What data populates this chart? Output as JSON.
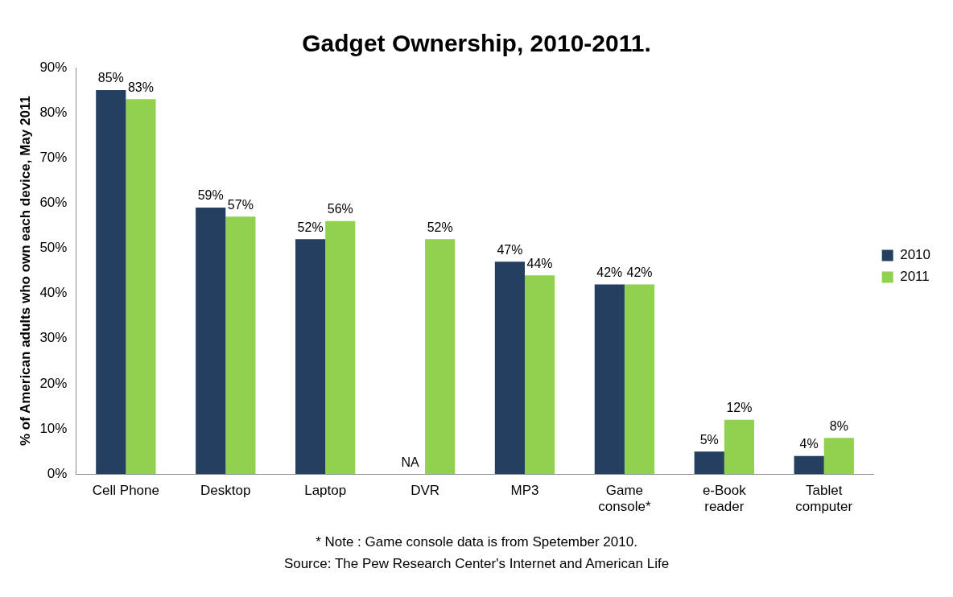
{
  "chart_data": {
    "type": "bar",
    "title": "Gadget Ownership, 2010-2011.",
    "ylabel": "% of American adults who own each device, May 2011",
    "categories": [
      "Cell Phone",
      "Desktop",
      "Laptop",
      "DVR",
      "MP3",
      "Game\nconsole*",
      "e-Book\nreader",
      "Tablet\ncomputer"
    ],
    "series": [
      {
        "name": "2010",
        "color": "#243f60",
        "values": [
          85,
          59,
          52,
          null,
          47,
          42,
          5,
          4
        ],
        "value_labels": [
          "85%",
          "59%",
          "52%",
          "NA",
          "47%",
          "42%",
          "5%",
          "4%"
        ]
      },
      {
        "name": "2011",
        "color": "#92d050",
        "values": [
          83,
          57,
          56,
          52,
          44,
          42,
          12,
          8
        ],
        "value_labels": [
          "83%",
          "57%",
          "56%",
          "52%",
          "44%",
          "42%",
          "12%",
          "8%"
        ]
      }
    ],
    "ylim": [
      0,
      90
    ],
    "yticks": [
      {
        "value": 0,
        "label": "0%"
      },
      {
        "value": 10,
        "label": "10%"
      },
      {
        "value": 20,
        "label": "20%"
      },
      {
        "value": 30,
        "label": "30%"
      },
      {
        "value": 40,
        "label": "40%"
      },
      {
        "value": 50,
        "label": "50%"
      },
      {
        "value": 60,
        "label": "60%"
      },
      {
        "value": 70,
        "label": "70%"
      },
      {
        "value": 80,
        "label": "80%"
      },
      {
        "value": 90,
        "label": "90%"
      }
    ],
    "grid": false,
    "legend": "right",
    "annotations": [
      "* Note : Game console data is from Spetember 2010.",
      "Source: The Pew Research Center's Internet and American Life"
    ]
  }
}
